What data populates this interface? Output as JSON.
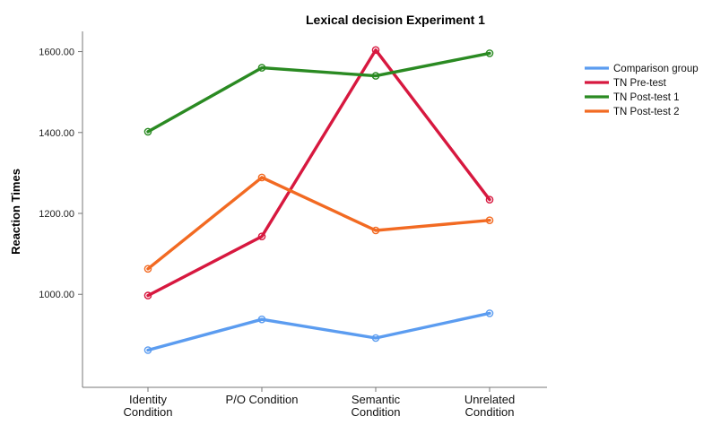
{
  "chart_data": {
    "type": "line",
    "title": "Lexical decision Experiment 1",
    "ylabel": "Reaction Times",
    "xlabel": "",
    "ylim": [
      770,
      1650
    ],
    "yticks": [
      1000,
      1200,
      1400,
      1600
    ],
    "ytick_labels": [
      "1000.00",
      "1200.00",
      "1400.00",
      "1600.00"
    ],
    "categories": [
      [
        "Identity",
        "Condition"
      ],
      [
        "P/O Condition"
      ],
      [
        "Semantic",
        "Condition"
      ],
      [
        "Unrelated",
        "Condition"
      ]
    ],
    "grid": false,
    "legend_position": "top-right",
    "series": [
      {
        "name": "Comparison group",
        "color": "#5b9cf0",
        "values": [
          862,
          938,
          892,
          953
        ]
      },
      {
        "name": "TN Pre-test",
        "color": "#d7183f",
        "values": [
          997,
          1143,
          1604,
          1234
        ]
      },
      {
        "name": "TN Post-test 1",
        "color": "#2a8a22",
        "values": [
          1402,
          1560,
          1540,
          1596
        ]
      },
      {
        "name": "TN Post-test 2",
        "color": "#f26a22",
        "values": [
          1063,
          1289,
          1158,
          1183
        ]
      }
    ]
  }
}
